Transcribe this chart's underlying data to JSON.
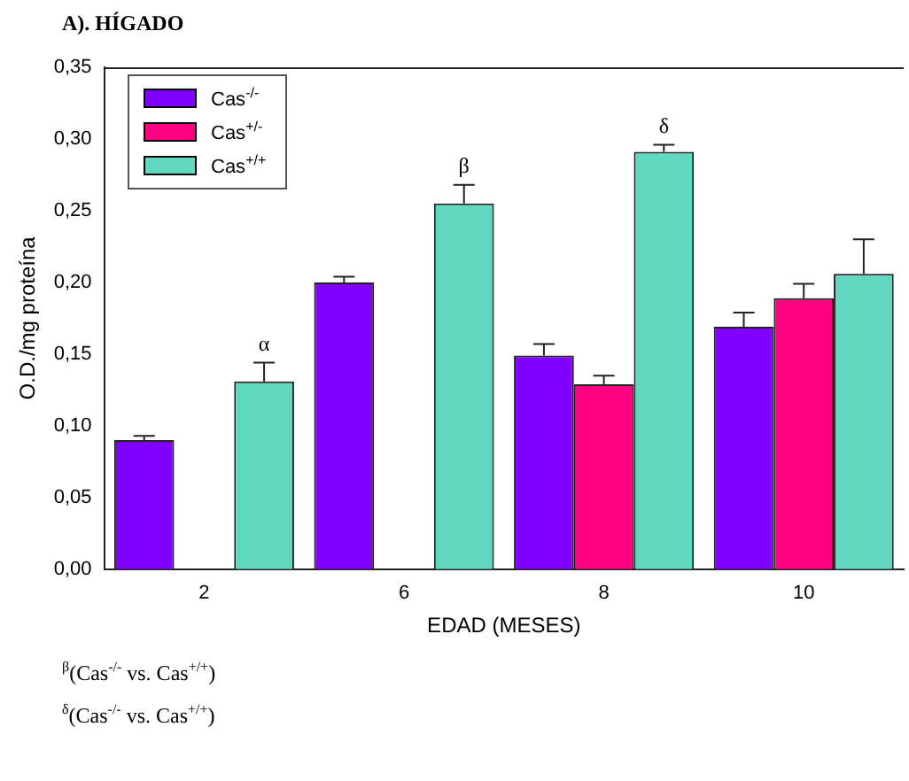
{
  "chart_data": {
    "type": "bar",
    "title": "A). HÍGADO",
    "xlabel": "EDAD (MESES)",
    "ylabel": "O.D./mg proteína",
    "categories": [
      "2",
      "6",
      "8",
      "10"
    ],
    "series": [
      {
        "name": "Cas$^{-/-}$",
        "color": "#8000ff",
        "values": [
          0.09,
          0.2,
          0.149,
          0.169
        ],
        "errors": [
          [
            0.09,
            0.093
          ],
          [
            0.2,
            0.204
          ],
          [
            0.149,
            0.157
          ],
          [
            0.169,
            0.179
          ]
        ]
      },
      {
        "name": "Cas$^{+/-}$",
        "color": "#ff0080",
        "values": [
          null,
          null,
          0.129,
          0.189
        ],
        "errors": [
          null,
          null,
          [
            0.129,
            0.135
          ],
          [
            0.189,
            0.199
          ]
        ]
      },
      {
        "name": "Cas$^{+/+}$",
        "color": "#60d8bf",
        "values": [
          0.131,
          0.255,
          0.291,
          0.206
        ],
        "errors": [
          [
            0.131,
            0.144
          ],
          [
            0.255,
            0.268
          ],
          [
            0.291,
            0.296
          ],
          [
            0.206,
            0.23
          ]
        ],
        "value_labels": [
          "α",
          "β",
          "δ",
          null
        ]
      }
    ],
    "ylim": [
      0,
      0.35
    ],
    "yticks": [
      {
        "value": 0,
        "label": "0,00"
      },
      {
        "value": 0.05,
        "label": "0,05"
      },
      {
        "value": 0.1,
        "label": "0,10"
      },
      {
        "value": 0.15,
        "label": "0,15"
      },
      {
        "value": 0.2,
        "label": "0,20"
      },
      {
        "value": 0.25,
        "label": "0,25"
      },
      {
        "value": 0.3,
        "label": "0,30"
      },
      {
        "value": 0.35,
        "label": "0,35"
      }
    ],
    "grid": false,
    "legend": "top left",
    "annotations": [
      "$^{β}$(Cas$^{-/-}$ vs. Cas$^{+/+}$)",
      "$^{δ}$(Cas$^{-/-}$ vs. Cas$^{+/+}$)"
    ]
  }
}
